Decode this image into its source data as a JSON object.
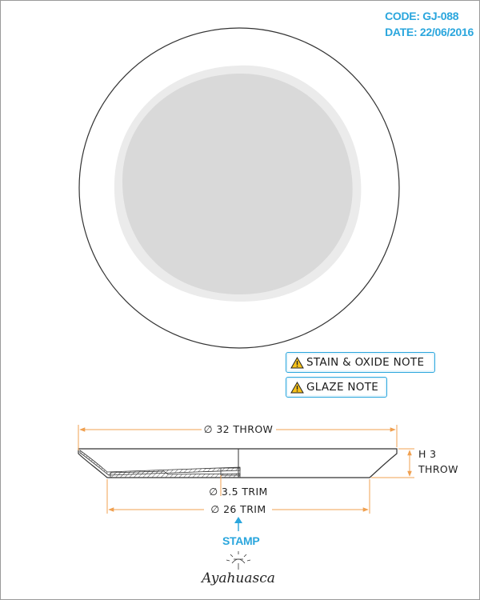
{
  "meta": {
    "code": "CODE: GJ-088",
    "date": "DATE: 22/06/2016"
  },
  "notes": {
    "stain_oxide": "STAIN & OXIDE NOTE",
    "glaze": "GLAZE NOTE"
  },
  "dimensions": {
    "outer_diameter": "∅ 32 THROW",
    "height_line1": "H 3",
    "height_line2": "THROW",
    "foot_ring": "∅ 3.5 TRIM",
    "base_diameter": "∅ 26 TRIM"
  },
  "stamp": {
    "label": "STAMP",
    "logo_text": "Ayahuasca"
  },
  "colors": {
    "accent": "#2aa6dd",
    "dimension": "#f0a050",
    "plate_center": "#d9d9d9",
    "plate_rim_inner": "#ebebeb",
    "outline": "#333333"
  },
  "icons": {
    "note": "warning-triangle-icon",
    "stamp_pointer": "arrow-up-icon"
  }
}
